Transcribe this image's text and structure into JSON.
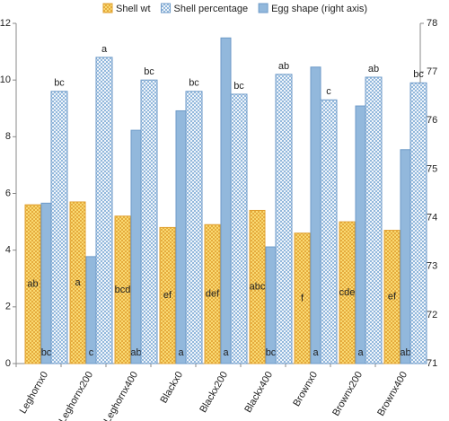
{
  "chart_data": {
    "type": "bar",
    "categories": [
      "Leghornx0",
      "Leghornx200",
      "Leghornx400",
      "Blackx0",
      "Blackx200",
      "Blackx400",
      "Brownx0",
      "Brownx200",
      "Brownx400"
    ],
    "series": [
      {
        "name": "Shell wt",
        "color": "#ffe680",
        "pattern": "crosshatch",
        "values": [
          5.6,
          5.7,
          5.2,
          4.8,
          4.9,
          5.4,
          4.6,
          5.0,
          4.7
        ],
        "letters": [
          "ab",
          "a",
          "bcd",
          "ef",
          "def",
          "abc",
          "f",
          "cde",
          "ef"
        ]
      },
      {
        "name": "Egg shape (right axis)",
        "color": "#92b8dc",
        "pattern": "solid",
        "axis": "y2",
        "values": [
          74.3,
          73.2,
          75.8,
          76.2,
          77.7,
          73.4,
          77.1,
          76.3,
          75.4
        ],
        "letters": [
          "bc",
          "c",
          "ab",
          "a",
          "a",
          "bc",
          "a",
          "a",
          "ab"
        ]
      },
      {
        "name": "Shell percentage",
        "color": "#92b8dc",
        "pattern": "dots",
        "values": [
          9.6,
          10.8,
          10.0,
          9.6,
          9.5,
          10.2,
          9.3,
          10.1,
          9.9
        ],
        "letters": [
          "bc",
          "a",
          "bc",
          "bc",
          "bc",
          "ab",
          "c",
          "ab",
          "bc"
        ]
      }
    ],
    "legend_order": [
      0,
      2,
      1
    ],
    "ylim": [
      0,
      12
    ],
    "yticks": [
      0,
      2,
      4,
      6,
      8,
      10,
      12
    ],
    "y2lim": [
      71,
      78
    ],
    "y2ticks": [
      71,
      72,
      73,
      74,
      75,
      76,
      77,
      78
    ]
  }
}
